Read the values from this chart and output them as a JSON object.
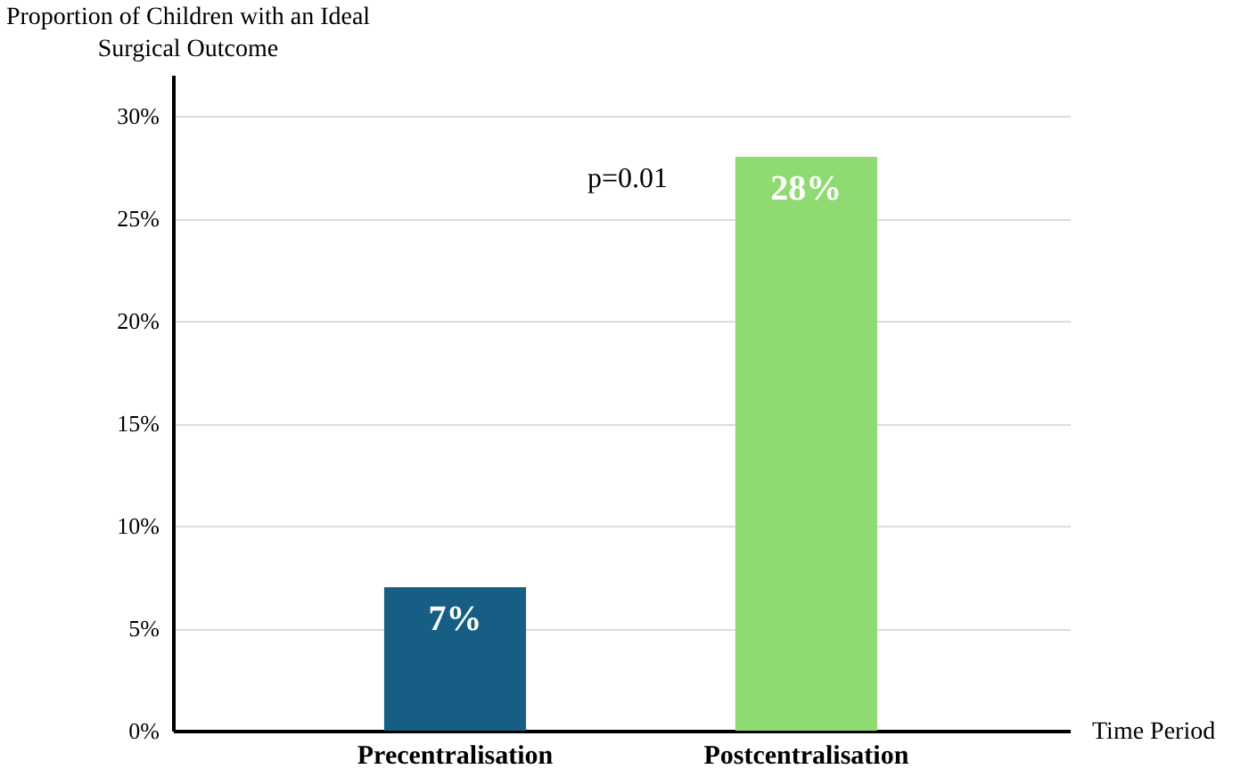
{
  "chart_data": {
    "type": "bar",
    "ylabel": "Proportion of Children with an Ideal Surgical Outcome",
    "xlabel": "Time Period",
    "categories": [
      "Precentralisation",
      "Postcentralisation"
    ],
    "values": [
      7,
      28
    ],
    "colors": [
      "#165e83",
      "#8fdb72"
    ],
    "ylim": [
      0,
      32
    ],
    "yticks": [
      {
        "value": 0,
        "label": "0%"
      },
      {
        "value": 5,
        "label": "5%"
      },
      {
        "value": 10,
        "label": "10%"
      },
      {
        "value": 15,
        "label": "15%"
      },
      {
        "value": 20,
        "label": "20%"
      },
      {
        "value": 25,
        "label": "25%"
      },
      {
        "value": 30,
        "label": "30%"
      }
    ],
    "value_labels": [
      "7%",
      "28%"
    ],
    "annotations": [
      "p=0.01"
    ],
    "grid": "y"
  }
}
